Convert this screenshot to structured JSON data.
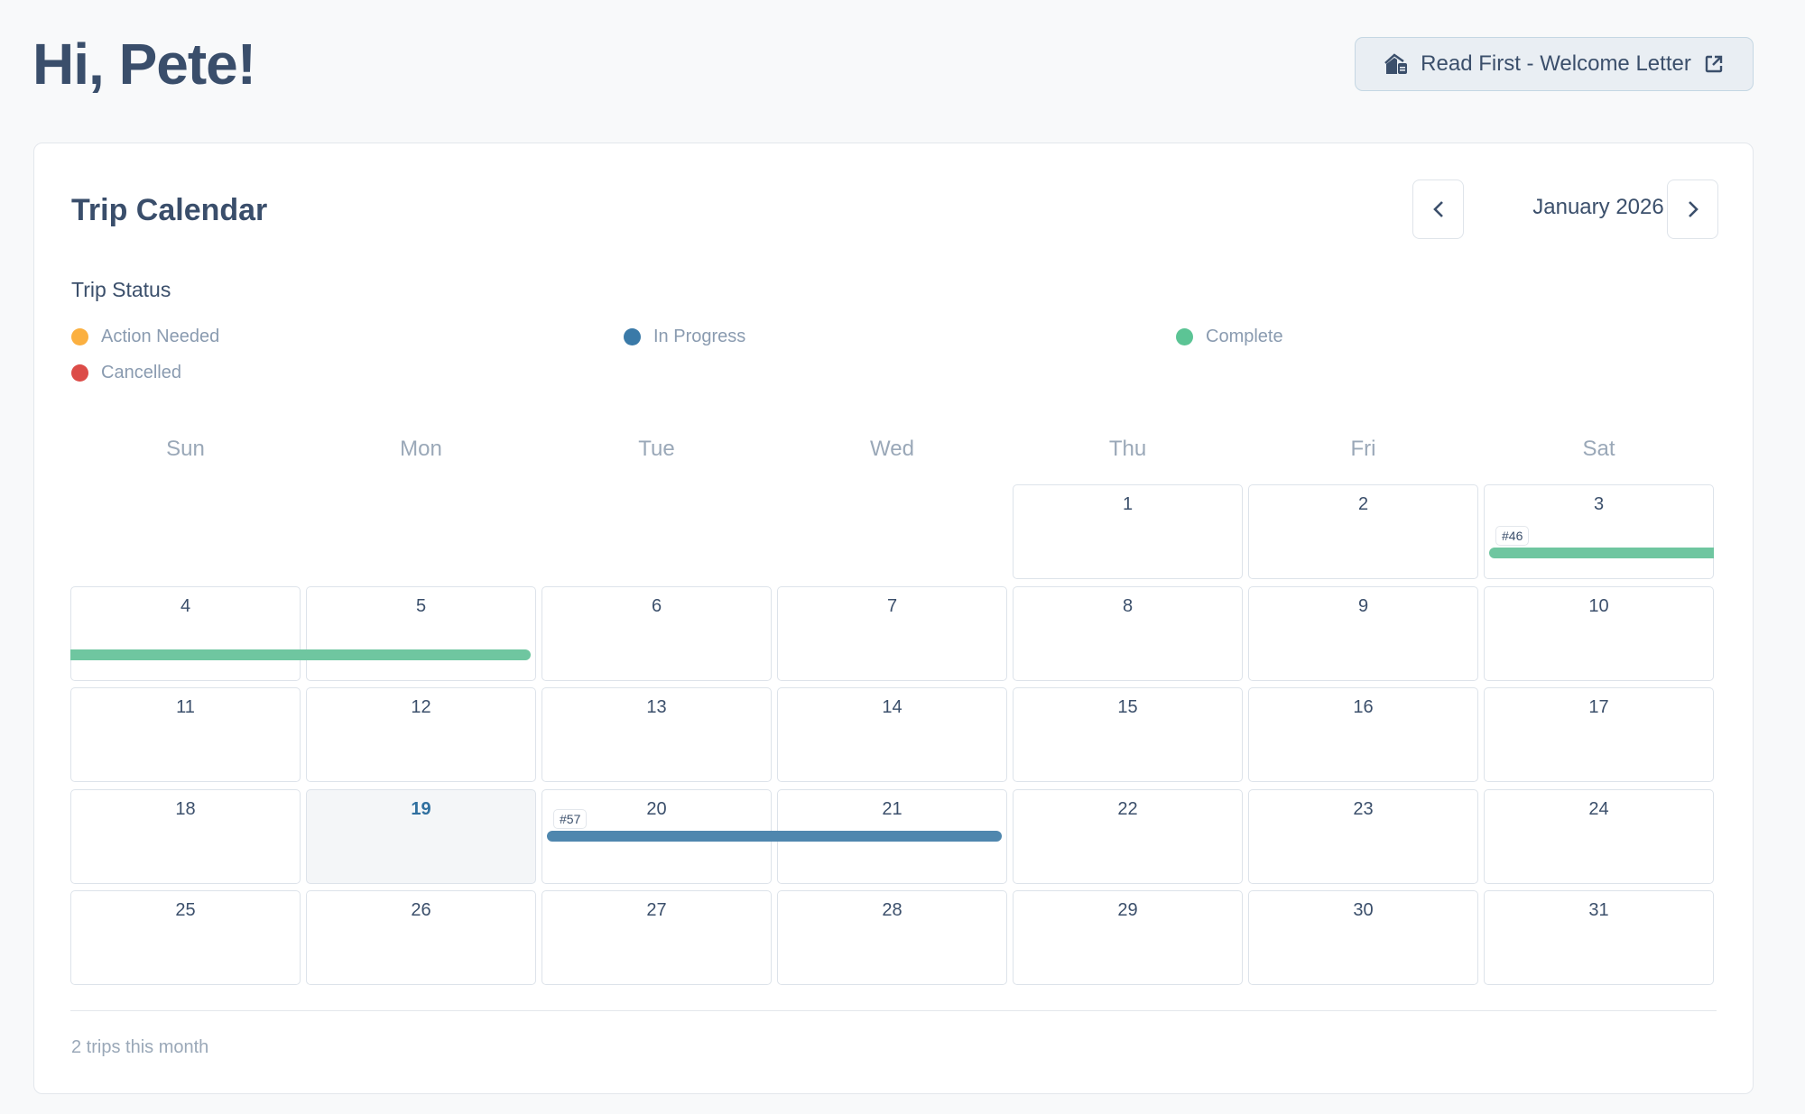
{
  "header": {
    "greeting": "Hi, Pete!",
    "welcome_button": "Read First - Welcome Letter",
    "welcome_icon": "house-letter-icon",
    "external_icon": "external-link-icon"
  },
  "calendar": {
    "title": "Trip Calendar",
    "month_label": "January 2026",
    "prev_icon": "chevron-left-icon",
    "next_icon": "chevron-right-icon",
    "status_title": "Trip Status",
    "legend": [
      {
        "label": "Action Needed",
        "color": "#fbb040"
      },
      {
        "label": "In Progress",
        "color": "#3a7aa8"
      },
      {
        "label": "Complete",
        "color": "#5cc495"
      },
      {
        "label": "Cancelled",
        "color": "#dc4c48"
      }
    ],
    "weekdays": [
      "Sun",
      "Mon",
      "Tue",
      "Wed",
      "Thu",
      "Fri",
      "Sat"
    ],
    "first_weekday": 4,
    "days_in_month": 31,
    "today": 19,
    "trips": [
      {
        "id": "#46",
        "status": "Complete",
        "color": "#6fc6a0",
        "start_day": 3,
        "end_day": 5
      },
      {
        "id": "#57",
        "status": "In Progress",
        "color": "#4f87ae",
        "start_day": 20,
        "end_day": 21
      }
    ],
    "footer": "2 trips this month"
  }
}
